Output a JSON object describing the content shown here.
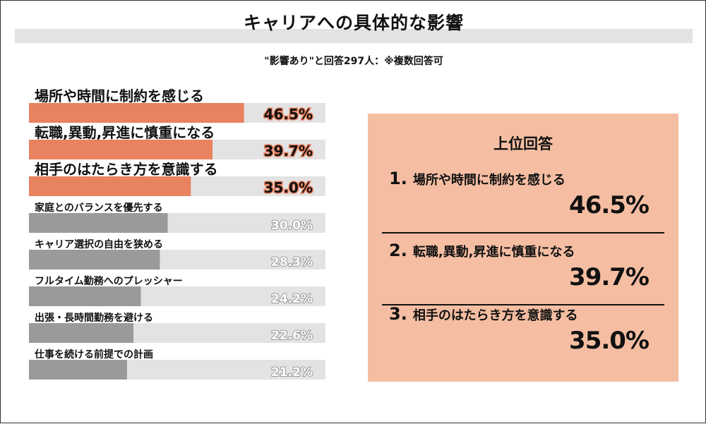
{
  "title": "キャリアへの具体的な影響",
  "subtitle": "\"影響あり\"と回答297人：※複数回答可",
  "colors": {
    "highlight": "#e8825f",
    "normal": "#9a9a9a",
    "track": "#e3e3e3",
    "panel": "#f5bea2"
  },
  "chart_data": {
    "type": "bar",
    "orientation": "horizontal",
    "unit": "%",
    "xlim": [
      0,
      100
    ],
    "highlighted_top": 3,
    "categories": [
      "場所や時間に制約を感じる",
      "転職,異動,昇進に慎重になる",
      "相手のはたらき方を意識する",
      "家庭とのバランスを優先する",
      "キャリア選択の自由を狭める",
      "フルタイム勤務へのプレッシャー",
      "出張・長時間勤務を避ける",
      "仕事を続ける前提での計画"
    ],
    "values": [
      46.5,
      39.7,
      35.0,
      30.0,
      28.3,
      24.2,
      22.6,
      21.2
    ],
    "value_labels": [
      "46.5%",
      "39.7%",
      "35.0%",
      "30.0%",
      "28.3%",
      "24.2%",
      "22.6%",
      "21.2%"
    ]
  },
  "top_panel": {
    "heading": "上位回答",
    "items": [
      {
        "rank": "1.",
        "label": "場所や時間に制約を感じる",
        "value": "46.5%"
      },
      {
        "rank": "2.",
        "label": "転職,異動,昇進に慎重になる",
        "value": "39.7%"
      },
      {
        "rank": "3.",
        "label": "相手のはたらき方を意識する",
        "value": "35.0%"
      }
    ]
  }
}
